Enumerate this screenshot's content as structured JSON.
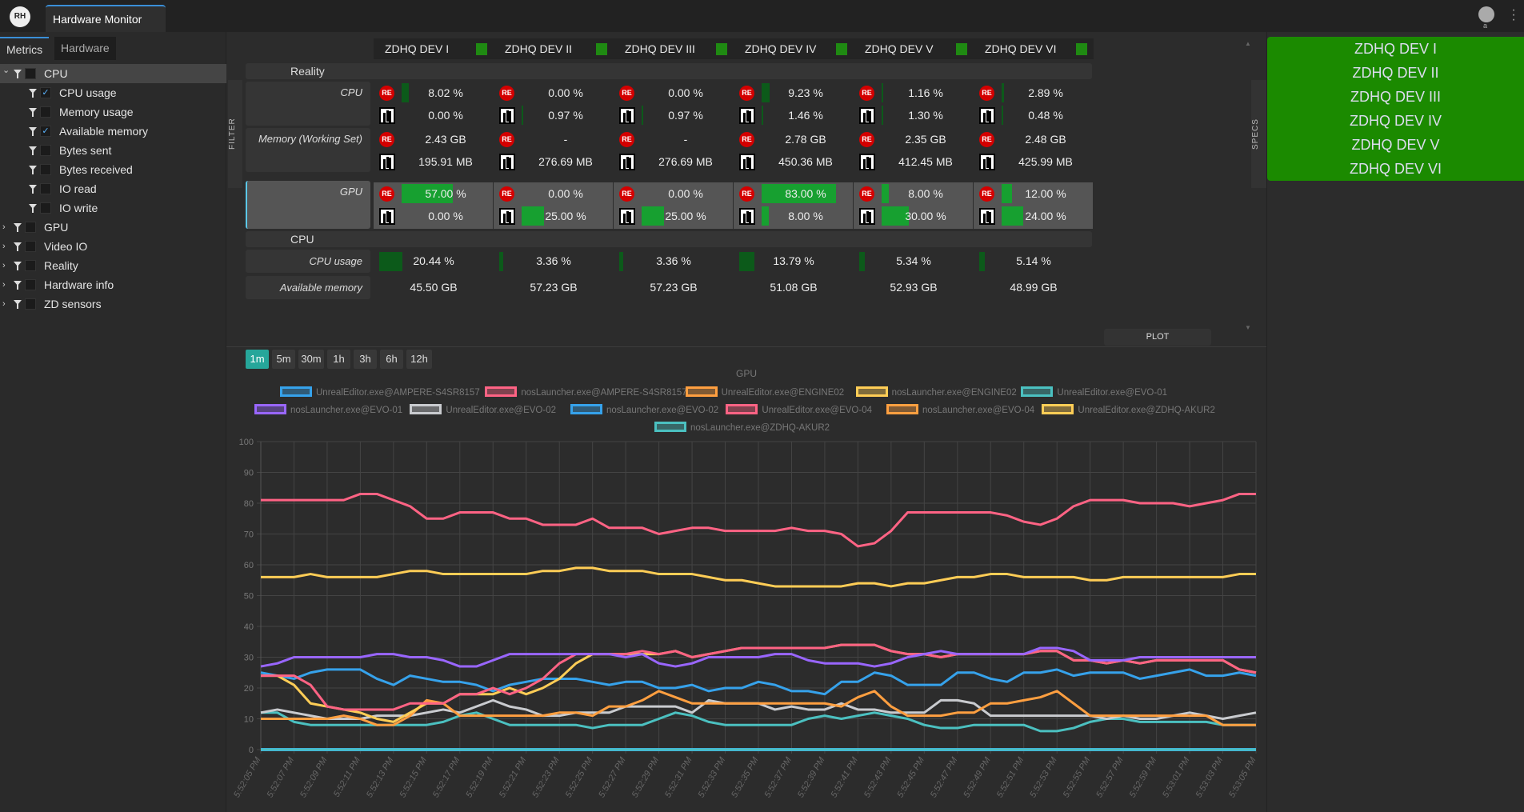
{
  "app": {
    "logo": "RH",
    "tab": "Hardware Monitor",
    "user_initial": "a",
    "more_icon": "vertical-dots-icon"
  },
  "sidebar": {
    "tabs": [
      "Metrics",
      "Hardware"
    ],
    "tree": [
      {
        "label": "CPU",
        "level": 0,
        "expanded": true,
        "checked": false,
        "selected": true
      },
      {
        "label": "CPU usage",
        "level": 1,
        "checked": true
      },
      {
        "label": "Memory usage",
        "level": 1,
        "checked": false
      },
      {
        "label": "Available memory",
        "level": 1,
        "checked": true
      },
      {
        "label": "Bytes sent",
        "level": 1,
        "checked": false
      },
      {
        "label": "Bytes received",
        "level": 1,
        "checked": false
      },
      {
        "label": "IO read",
        "level": 1,
        "checked": false
      },
      {
        "label": "IO write",
        "level": 1,
        "checked": false
      },
      {
        "label": "GPU",
        "level": 0,
        "expanded": false,
        "checked": false
      },
      {
        "label": "Video IO",
        "level": 0,
        "expanded": false,
        "checked": false
      },
      {
        "label": "Reality",
        "level": 0,
        "expanded": false,
        "checked": false
      },
      {
        "label": "Hardware info",
        "level": 0,
        "expanded": false,
        "checked": false
      },
      {
        "label": "ZD sensors",
        "level": 0,
        "expanded": false,
        "checked": false
      }
    ]
  },
  "side_tabs": {
    "filter": "FILTER",
    "specs": "SPECS"
  },
  "table": {
    "sections": [
      "Reality",
      "CPU"
    ],
    "row_labels": {
      "cpu": "CPU",
      "memory": "Memory (Working Set)",
      "gpu": "GPU",
      "cpu_usage": "CPU usage",
      "available_memory": "Available memory"
    },
    "status_color": "#1f8a12",
    "devices": [
      {
        "name": "ZDHQ DEV I",
        "cpu": [
          "8.02 %",
          "0.00 %"
        ],
        "cpu_pct": [
          8.02,
          0
        ],
        "mem": [
          "2.43 GB",
          "195.91 MB"
        ],
        "gpu": [
          "57.00 %",
          "0.00 %"
        ],
        "gpu_pct": [
          57,
          0
        ],
        "cpu_usage": "20.44 %",
        "cpu_usage_pct": 20.44,
        "avail": "45.50 GB"
      },
      {
        "name": "ZDHQ DEV II",
        "cpu": [
          "0.00 %",
          "0.97 %"
        ],
        "cpu_pct": [
          0,
          0.97
        ],
        "mem": [
          "-",
          "276.69 MB"
        ],
        "gpu": [
          "0.00 %",
          "25.00 %"
        ],
        "gpu_pct": [
          0,
          25
        ],
        "cpu_usage": "3.36 %",
        "cpu_usage_pct": 3.36,
        "avail": "57.23 GB"
      },
      {
        "name": "ZDHQ DEV III",
        "cpu": [
          "0.00 %",
          "0.97 %"
        ],
        "cpu_pct": [
          0,
          0.97
        ],
        "mem": [
          "-",
          "276.69 MB"
        ],
        "gpu": [
          "0.00 %",
          "25.00 %"
        ],
        "gpu_pct": [
          0,
          25
        ],
        "cpu_usage": "3.36 %",
        "cpu_usage_pct": 3.36,
        "avail": "57.23 GB"
      },
      {
        "name": "ZDHQ DEV IV",
        "cpu": [
          "9.23 %",
          "1.46 %"
        ],
        "cpu_pct": [
          9.23,
          1.46
        ],
        "mem": [
          "2.78 GB",
          "450.36 MB"
        ],
        "gpu": [
          "83.00 %",
          "8.00 %"
        ],
        "gpu_pct": [
          83,
          8
        ],
        "cpu_usage": "13.79 %",
        "cpu_usage_pct": 13.79,
        "avail": "51.08 GB"
      },
      {
        "name": "ZDHQ DEV V",
        "cpu": [
          "1.16 %",
          "1.30 %"
        ],
        "cpu_pct": [
          1.16,
          1.3
        ],
        "mem": [
          "2.35 GB",
          "412.45 MB"
        ],
        "gpu": [
          "8.00 %",
          "30.00 %"
        ],
        "gpu_pct": [
          8,
          30
        ],
        "cpu_usage": "5.34 %",
        "cpu_usage_pct": 5.34,
        "avail": "52.93 GB"
      },
      {
        "name": "ZDHQ DEV VI",
        "cpu": [
          "2.89 %",
          "0.48 %"
        ],
        "cpu_pct": [
          2.89,
          0.48
        ],
        "mem": [
          "2.48 GB",
          "425.99 MB"
        ],
        "gpu": [
          "12.00 %",
          "24.00 %"
        ],
        "gpu_pct": [
          12,
          24
        ],
        "cpu_usage": "5.14 %",
        "cpu_usage_pct": 5.14,
        "avail": "48.99 GB"
      }
    ],
    "re_icon_label": "RE"
  },
  "plot_button": "PLOT",
  "right_panel": {
    "color": "#1b8a00",
    "items": [
      "ZDHQ DEV I",
      "ZDHQ DEV II",
      "ZDHQ DEV III",
      "ZDHQ DEV IV",
      "ZDHQ DEV V",
      "ZDHQ DEV VI"
    ]
  },
  "time_ranges": {
    "options": [
      "1m",
      "5m",
      "30m",
      "1h",
      "3h",
      "6h",
      "12h"
    ],
    "selected": "1m"
  },
  "chart_data": {
    "type": "line",
    "title": "GPU",
    "ylim": [
      0,
      100
    ],
    "yticks": [
      0,
      10,
      20,
      30,
      40,
      50,
      60,
      70,
      80,
      90,
      100
    ],
    "grid": true,
    "legend": "top",
    "xticks": [
      "5:52:05 PM",
      "5:52:07 PM",
      "5:52:09 PM",
      "5:52:11 PM",
      "5:52:13 PM",
      "5:52:15 PM",
      "5:52:17 PM",
      "5:52:19 PM",
      "5:52:21 PM",
      "5:52:23 PM",
      "5:52:25 PM",
      "5:52:27 PM",
      "5:52:29 PM",
      "5:52:31 PM",
      "5:52:33 PM",
      "5:52:35 PM",
      "5:52:37 PM",
      "5:52:39 PM",
      "5:52:41 PM",
      "5:52:43 PM",
      "5:52:45 PM",
      "5:52:47 PM",
      "5:52:49 PM",
      "5:52:51 PM",
      "5:52:53 PM",
      "5:52:55 PM",
      "5:52:57 PM",
      "5:52:59 PM",
      "5:53:01 PM",
      "5:53:03 PM",
      "5:53:05 PM"
    ],
    "x_interval_seconds": 1,
    "series": [
      {
        "name": "UnrealEditor.exe@AMPERE-S4SR8157",
        "color": "#36a2eb",
        "values": [
          25,
          24,
          23,
          25,
          26,
          26,
          26,
          23,
          21,
          24,
          23,
          22,
          22,
          21,
          19,
          21,
          22,
          23,
          23,
          23,
          22,
          21,
          22,
          22,
          20,
          20,
          21,
          19,
          20,
          20,
          22,
          21,
          19,
          19,
          18,
          22,
          22,
          25,
          24,
          21,
          21,
          21,
          25,
          25,
          23,
          22,
          25,
          25,
          26,
          24,
          25,
          25,
          25,
          23,
          24,
          25,
          26,
          24,
          24,
          25,
          24
        ]
      },
      {
        "name": "nosLauncher.exe@AMPERE-S4SR8157",
        "color": "#ff6384",
        "values": [
          81,
          81,
          81,
          81,
          81,
          81,
          83,
          83,
          81,
          79,
          75,
          75,
          77,
          77,
          77,
          75,
          75,
          73,
          73,
          73,
          75,
          72,
          72,
          72,
          70,
          71,
          72,
          72,
          71,
          71,
          71,
          71,
          72,
          71,
          71,
          70,
          66,
          67,
          71,
          77,
          77,
          77,
          77,
          77,
          77,
          76,
          74,
          73,
          75,
          79,
          81,
          81,
          81,
          80,
          80,
          80,
          79,
          80,
          81,
          83,
          83
        ]
      },
      {
        "name": "UnrealEditor.exe@ENGINE02",
        "color": "#ff9f40",
        "values": [
          10,
          10,
          10,
          10,
          10,
          11,
          10,
          8,
          8,
          11,
          16,
          15,
          11,
          11,
          11,
          11,
          11,
          11,
          12,
          12,
          11,
          14,
          14,
          16,
          19,
          17,
          15,
          15,
          15,
          15,
          15,
          15,
          15,
          15,
          15,
          14,
          17,
          19,
          14,
          11,
          11,
          11,
          12,
          12,
          15,
          15,
          16,
          17,
          19,
          15,
          11,
          11,
          11,
          11,
          11,
          11,
          11,
          11,
          8,
          8,
          8
        ]
      },
      {
        "name": "nosLauncher.exe@ENGINE02",
        "color": "#ffcd56",
        "values": [
          56,
          56,
          56,
          57,
          56,
          56,
          56,
          56,
          57,
          58,
          58,
          57,
          57,
          57,
          57,
          57,
          57,
          58,
          58,
          59,
          59,
          58,
          58,
          58,
          57,
          57,
          57,
          56,
          55,
          55,
          54,
          53,
          53,
          53,
          53,
          53,
          54,
          54,
          53,
          54,
          54,
          55,
          56,
          56,
          57,
          57,
          56,
          56,
          56,
          56,
          55,
          55,
          56,
          56,
          56,
          56,
          56,
          56,
          56,
          57,
          57
        ]
      },
      {
        "name": "UnrealEditor.exe@EVO-01",
        "color": "#4bc0c0",
        "values": [
          12,
          12,
          9,
          8,
          8,
          8,
          8,
          8,
          8,
          8,
          8,
          9,
          11,
          12,
          10,
          8,
          8,
          8,
          8,
          8,
          7,
          8,
          8,
          8,
          10,
          12,
          11,
          9,
          8,
          8,
          8,
          8,
          8,
          10,
          11,
          10,
          11,
          12,
          11,
          10,
          8,
          7,
          7,
          8,
          8,
          8,
          8,
          6,
          6,
          7,
          9,
          10,
          10,
          9,
          9,
          9,
          9,
          9,
          8,
          8,
          8
        ]
      },
      {
        "name": "nosLauncher.exe@EVO-01",
        "color": "#9966ff",
        "values": [
          27,
          28,
          30,
          30,
          30,
          30,
          30,
          31,
          31,
          30,
          30,
          29,
          27,
          27,
          29,
          31,
          31,
          31,
          31,
          31,
          31,
          31,
          30,
          31,
          28,
          27,
          28,
          30,
          30,
          30,
          30,
          31,
          31,
          29,
          28,
          28,
          28,
          27,
          28,
          30,
          31,
          32,
          31,
          31,
          31,
          31,
          31,
          33,
          33,
          32,
          29,
          29,
          29,
          30,
          30,
          30,
          30,
          30,
          30,
          30,
          30
        ]
      },
      {
        "name": "UnrealEditor.exe@EVO-02",
        "color": "#c9cbcf",
        "values": [
          12,
          13,
          12,
          11,
          10,
          10,
          10,
          11,
          11,
          11,
          12,
          13,
          12,
          14,
          16,
          14,
          13,
          11,
          11,
          12,
          12,
          12,
          14,
          14,
          14,
          14,
          12,
          16,
          15,
          15,
          15,
          13,
          14,
          13,
          13,
          15,
          13,
          13,
          12,
          12,
          12,
          16,
          16,
          15,
          11,
          11,
          11,
          11,
          11,
          11,
          11,
          10,
          11,
          10,
          10,
          11,
          12,
          11,
          10,
          11,
          12
        ]
      },
      {
        "name": "nosLauncher.exe@EVO-02",
        "color": "#36a2eb",
        "values": [
          0,
          0,
          0,
          0,
          0,
          0,
          0,
          0,
          0,
          0,
          0,
          0,
          0,
          0,
          0,
          0,
          0,
          0,
          0,
          0,
          0,
          0,
          0,
          0,
          0,
          0,
          0,
          0,
          0,
          0,
          0,
          0,
          0,
          0,
          0,
          0,
          0,
          0,
          0,
          0,
          0,
          0,
          0,
          0,
          0,
          0,
          0,
          0,
          0,
          0,
          0,
          0,
          0,
          0,
          0,
          0,
          0,
          0,
          0,
          0,
          0
        ]
      },
      {
        "name": "UnrealEditor.exe@EVO-04",
        "color": "#ff6384",
        "values": [
          24,
          24,
          24,
          21,
          14,
          13,
          13,
          13,
          13,
          15,
          15,
          15,
          18,
          18,
          20,
          18,
          20,
          23,
          28,
          31,
          31,
          31,
          31,
          32,
          31,
          32,
          30,
          31,
          32,
          33,
          33,
          33,
          33,
          33,
          33,
          34,
          34,
          34,
          32,
          31,
          31,
          30,
          31,
          31,
          31,
          31,
          31,
          32,
          32,
          29,
          29,
          28,
          29,
          28,
          29,
          29,
          29,
          29,
          29,
          26,
          25
        ]
      },
      {
        "name": "nosLauncher.exe@EVO-04",
        "color": "#ff9f40",
        "values": [
          0,
          0,
          0,
          0,
          0,
          0,
          0,
          0,
          0,
          0,
          0,
          0,
          0,
          0,
          0,
          0,
          0,
          0,
          0,
          0,
          0,
          0,
          0,
          0,
          0,
          0,
          0,
          0,
          0,
          0,
          0,
          0,
          0,
          0,
          0,
          0,
          0,
          0,
          0,
          0,
          0,
          0,
          0,
          0,
          0,
          0,
          0,
          0,
          0,
          0,
          0,
          0,
          0,
          0,
          0,
          0,
          0,
          0,
          0,
          0,
          0
        ]
      },
      {
        "name": "UnrealEditor.exe@ZDHQ-AKUR2",
        "color": "#ffcd56",
        "values": [
          24,
          24,
          21,
          15,
          14,
          13,
          12,
          10,
          9,
          12,
          15,
          15,
          18,
          18,
          18,
          20,
          18,
          20,
          23,
          28,
          31,
          31,
          31,
          31,
          31,
          32,
          30,
          31,
          32,
          33,
          33,
          33,
          33,
          33,
          33,
          34,
          34,
          34,
          32,
          31,
          31,
          30,
          31,
          31,
          31,
          31,
          31,
          32,
          32,
          29,
          29,
          28,
          29,
          28,
          29,
          29,
          29,
          29,
          29,
          26,
          25
        ]
      },
      {
        "name": "nosLauncher.exe@ZDHQ-AKUR2",
        "color": "#4bc0c0",
        "values": [
          0,
          0,
          0,
          0,
          0,
          0,
          0,
          0,
          0,
          0,
          0,
          0,
          0,
          0,
          0,
          0,
          0,
          0,
          0,
          0,
          0,
          0,
          0,
          0,
          0,
          0,
          0,
          0,
          0,
          0,
          0,
          0,
          0,
          0,
          0,
          0,
          0,
          0,
          0,
          0,
          0,
          0,
          0,
          0,
          0,
          0,
          0,
          0,
          0,
          0,
          0,
          0,
          0,
          0,
          0,
          0,
          0,
          0,
          0,
          0,
          0
        ]
      }
    ]
  }
}
